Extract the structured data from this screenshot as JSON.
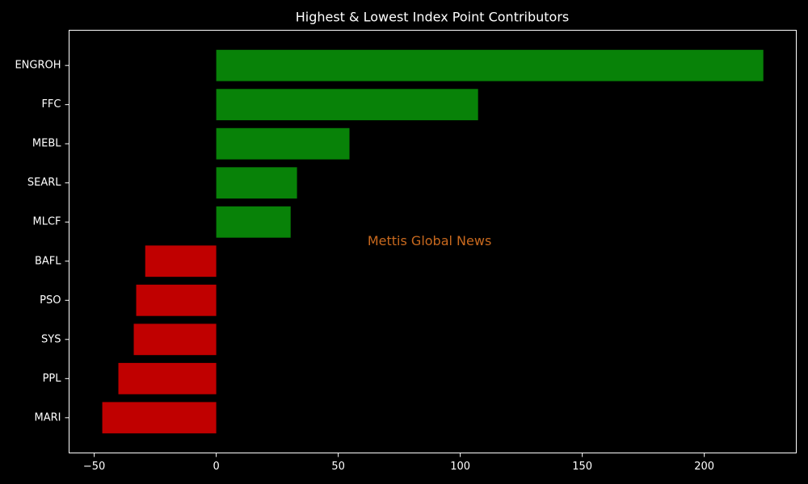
{
  "chart_data": {
    "type": "barh",
    "title": "Highest & Lowest Index Point Contributors",
    "categories": [
      "ENGROH",
      "FFC",
      "MEBL",
      "SEARL",
      "MLCF",
      "BAFL",
      "PSO",
      "SYS",
      "PPL",
      "MARI"
    ],
    "values": [
      224.2,
      107.3,
      54.6,
      33.1,
      30.5,
      -29.1,
      -32.8,
      -33.8,
      -40.1,
      -46.7
    ],
    "colors": [
      "#088208",
      "#088208",
      "#088208",
      "#088208",
      "#088208",
      "#c00000",
      "#c00000",
      "#c00000",
      "#c00000",
      "#c00000"
    ],
    "xlim": [
      -60.3,
      237.7
    ],
    "xticks": [
      {
        "value": -50,
        "label": "−50"
      },
      0,
      50,
      100,
      150,
      200
    ],
    "annotation": {
      "text": "Mettis Global News",
      "x": 62
    }
  }
}
